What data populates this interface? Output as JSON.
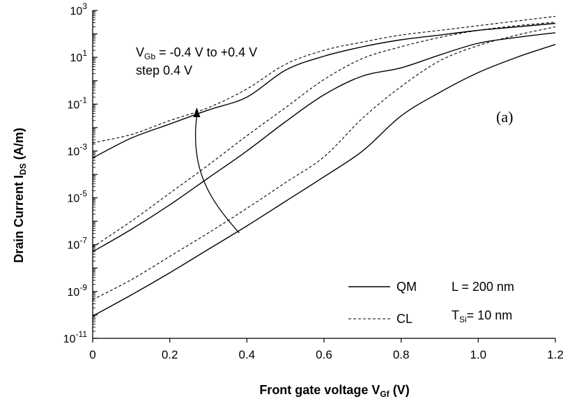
{
  "chart_data": {
    "type": "line",
    "title": "",
    "panel_label": "(a)",
    "xlabel": {
      "main": "Front gate voltage V",
      "sub": "Gf",
      "tail": " (V)"
    },
    "ylabel": {
      "main": "Drain Current I",
      "sub": "DS",
      "tail": " (A/m)"
    },
    "xlim": [
      0,
      1.2
    ],
    "ylim_log10": [
      -11,
      3
    ],
    "y_scale": "log",
    "x_ticks": [
      "0",
      "0.2",
      "0.4",
      "0.6",
      "0.8",
      "1.0",
      "1.2"
    ],
    "x_tick_values": [
      0,
      0.2,
      0.4,
      0.6,
      0.8,
      1.0,
      1.2
    ],
    "y_ticks": [
      {
        "base": "10",
        "exp": "3",
        "value": 3
      },
      {
        "base": "10",
        "exp": "1",
        "value": 1
      },
      {
        "base": "10",
        "exp": "-1",
        "value": -1
      },
      {
        "base": "10",
        "exp": "-3",
        "value": -3
      },
      {
        "base": "10",
        "exp": "-5",
        "value": -5
      },
      {
        "base": "10",
        "exp": "-7",
        "value": -7
      },
      {
        "base": "10",
        "exp": "-9",
        "value": -9
      },
      {
        "base": "10",
        "exp": "-11",
        "value": -11
      }
    ],
    "grid": false,
    "legend_position": "bottom-right",
    "legend": [
      {
        "label": "QM",
        "style": "solid"
      },
      {
        "label": "CL",
        "style": "dashed"
      }
    ],
    "params": [
      {
        "main": "L = 200 nm",
        "sub": ""
      },
      {
        "main": "T",
        "sub": "Si",
        "tail": "= 10 nm"
      }
    ],
    "annotation": {
      "line1_main": "V",
      "line1_sub": "Gb",
      "line1_tail": " = -0.4 V to +0.4 V",
      "line2": "step 0.4 V",
      "arrow_from": {
        "x": 0.38,
        "y": -6.5
      },
      "arrow_to": {
        "x": 0.27,
        "y": -1.2
      }
    },
    "x": [
      0,
      0.1,
      0.2,
      0.3,
      0.4,
      0.5,
      0.6,
      0.7,
      0.8,
      0.9,
      1.0,
      1.1,
      1.2
    ],
    "series": [
      {
        "style": "solid",
        "vgb": -0.4,
        "log10_values": [
          -10.05,
          -9.15,
          -8.2,
          -7.2,
          -6.2,
          -5.15,
          -4.1,
          -3.0,
          -1.5,
          -0.5,
          0.35,
          1.0,
          1.55
        ]
      },
      {
        "style": "dashed",
        "vgb": -0.4,
        "log10_values": [
          -9.35,
          -8.5,
          -7.5,
          -6.5,
          -5.45,
          -4.35,
          -3.25,
          -1.6,
          -0.25,
          0.85,
          1.5,
          1.95,
          2.3
        ]
      },
      {
        "style": "solid",
        "vgb": 0.0,
        "log10_values": [
          -7.3,
          -6.35,
          -5.3,
          -4.15,
          -3.0,
          -1.75,
          -0.6,
          0.2,
          0.55,
          1.1,
          1.6,
          1.85,
          2.05
        ]
      },
      {
        "style": "dashed",
        "vgb": 0.0,
        "log10_values": [
          -7.1,
          -6.0,
          -4.8,
          -3.6,
          -2.35,
          -1.15,
          0.05,
          0.95,
          1.45,
          1.85,
          2.15,
          2.35,
          2.5
        ]
      },
      {
        "style": "solid",
        "vgb": 0.4,
        "log10_values": [
          -3.3,
          -2.45,
          -1.85,
          -1.25,
          -0.7,
          0.45,
          1.05,
          1.45,
          1.75,
          1.95,
          2.15,
          2.3,
          2.45
        ]
      },
      {
        "style": "dashed",
        "vgb": 0.4,
        "log10_values": [
          -2.65,
          -2.3,
          -1.7,
          -1.15,
          -0.35,
          0.7,
          1.3,
          1.65,
          1.95,
          2.15,
          2.35,
          2.55,
          2.75
        ]
      }
    ]
  }
}
